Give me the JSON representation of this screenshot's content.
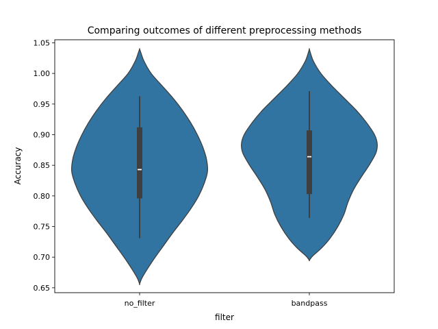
{
  "chart_data": {
    "type": "violin",
    "title": "Comparing outcomes of different preprocessing methods",
    "xlabel": "filter",
    "ylabel": "Accuracy",
    "ylim": [
      0.642,
      1.055
    ],
    "yticks": [
      0.65,
      0.7,
      0.75,
      0.8,
      0.85,
      0.9,
      0.95,
      1.0,
      1.05
    ],
    "ytick_labels": [
      "0.65",
      "0.70",
      "0.75",
      "0.80",
      "0.85",
      "0.90",
      "0.95",
      "1.00",
      "1.05"
    ],
    "categories": [
      "no_filter",
      "bandpass"
    ],
    "grid": false,
    "colors": {
      "violin": "#3274a1",
      "edge": "#3f3f3f",
      "box": "#3f3f3f",
      "median": "#ffffff"
    },
    "series": [
      {
        "category": "no_filter",
        "min": 0.731,
        "q1": 0.796,
        "median": 0.843,
        "q3": 0.912,
        "max": 0.963,
        "kde_bottom": 0.656,
        "kde_top": 1.04,
        "density": [
          [
            0.656,
            0.0
          ],
          [
            0.665,
            0.03
          ],
          [
            0.68,
            0.11
          ],
          [
            0.7,
            0.23
          ],
          [
            0.72,
            0.36
          ],
          [
            0.74,
            0.49
          ],
          [
            0.76,
            0.63
          ],
          [
            0.78,
            0.76
          ],
          [
            0.8,
            0.87
          ],
          [
            0.82,
            0.95
          ],
          [
            0.84,
            1.0
          ],
          [
            0.86,
            0.985
          ],
          [
            0.88,
            0.93
          ],
          [
            0.9,
            0.85
          ],
          [
            0.92,
            0.75
          ],
          [
            0.94,
            0.63
          ],
          [
            0.96,
            0.49
          ],
          [
            0.98,
            0.33
          ],
          [
            1.0,
            0.17
          ],
          [
            1.02,
            0.065
          ],
          [
            1.035,
            0.015
          ],
          [
            1.04,
            0.0
          ]
        ]
      },
      {
        "category": "bandpass",
        "min": 0.764,
        "q1": 0.803,
        "median": 0.864,
        "q3": 0.907,
        "max": 0.971,
        "kde_bottom": 0.695,
        "kde_top": 1.04,
        "density": [
          [
            0.695,
            0.0
          ],
          [
            0.702,
            0.05
          ],
          [
            0.715,
            0.18
          ],
          [
            0.73,
            0.3
          ],
          [
            0.75,
            0.42
          ],
          [
            0.77,
            0.51
          ],
          [
            0.79,
            0.57
          ],
          [
            0.81,
            0.65
          ],
          [
            0.83,
            0.76
          ],
          [
            0.85,
            0.88
          ],
          [
            0.87,
            0.98
          ],
          [
            0.885,
            1.0
          ],
          [
            0.9,
            0.96
          ],
          [
            0.92,
            0.84
          ],
          [
            0.94,
            0.69
          ],
          [
            0.96,
            0.51
          ],
          [
            0.98,
            0.33
          ],
          [
            1.0,
            0.17
          ],
          [
            1.02,
            0.06
          ],
          [
            1.035,
            0.012
          ],
          [
            1.04,
            0.0
          ]
        ]
      }
    ]
  }
}
